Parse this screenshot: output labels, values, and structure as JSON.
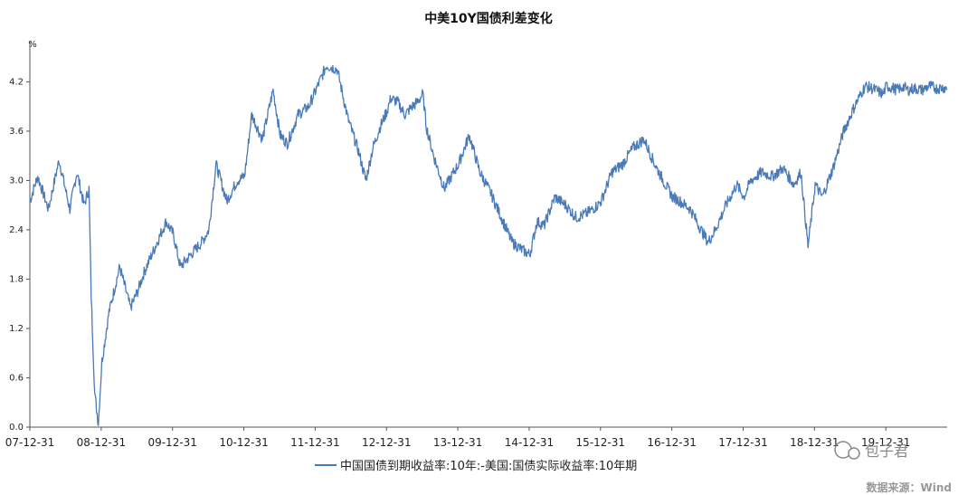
{
  "chart_data": {
    "type": "line",
    "title": "中美10Y国债利差变化",
    "ylabel": "%",
    "ylim": [
      0.0,
      4.7
    ],
    "yticks": [
      "0.0",
      "0.6",
      "1.2",
      "1.8",
      "2.4",
      "3.0",
      "3.6",
      "4.2"
    ],
    "xtick_labels": [
      "07-12-31",
      "08-12-31",
      "09-12-31",
      "10-12-31",
      "11-12-31",
      "12-12-31",
      "13-12-31",
      "14-12-31",
      "15-12-31",
      "16-12-31",
      "17-12-31",
      "18-12-31",
      "19-12-31"
    ],
    "grid": false,
    "legend_position": "bottom",
    "series": [
      {
        "name": "中国国债到期收益率:10年:-美国:国债实际收益率:10年期",
        "color": "#4a7ab8",
        "x": [
          2007.99,
          2008.1,
          2008.25,
          2008.4,
          2008.55,
          2008.65,
          2008.75,
          2008.82,
          2008.85,
          2008.9,
          2008.95,
          2009.0,
          2009.1,
          2009.25,
          2009.4,
          2009.5,
          2009.6,
          2009.75,
          2009.9,
          2010.0,
          2010.1,
          2010.25,
          2010.4,
          2010.5,
          2010.6,
          2010.75,
          2010.9,
          2011.0,
          2011.1,
          2011.25,
          2011.4,
          2011.5,
          2011.6,
          2011.75,
          2011.9,
          2012.0,
          2012.15,
          2012.3,
          2012.45,
          2012.6,
          2012.7,
          2012.8,
          2012.9,
          2013.0,
          2013.05,
          2013.15,
          2013.25,
          2013.35,
          2013.42,
          2013.5,
          2013.55,
          2013.65,
          2013.8,
          2014.0,
          2014.15,
          2014.3,
          2014.45,
          2014.6,
          2014.75,
          2014.9,
          2015.0,
          2015.1,
          2015.2,
          2015.35,
          2015.5,
          2015.65,
          2015.8,
          2015.95,
          2016.0,
          2016.15,
          2016.3,
          2016.45,
          2016.6,
          2016.75,
          2016.9,
          2017.0,
          2017.1,
          2017.25,
          2017.4,
          2017.5,
          2017.6,
          2017.75,
          2017.9,
          2018.0,
          2018.1,
          2018.25,
          2018.4,
          2018.55,
          2018.7,
          2018.8,
          2018.9,
          2019.0,
          2019.1,
          2019.25,
          2019.4,
          2019.55,
          2019.7,
          2019.85,
          2019.95,
          2020.0,
          2020.1,
          2020.15,
          2020.18,
          2020.2,
          2020.22,
          2020.3,
          2020.4,
          2020.5,
          2020.6,
          2020.7,
          2020.8,
          2020.85
        ],
        "values": [
          2.75,
          3.05,
          2.65,
          3.25,
          2.65,
          3.1,
          2.7,
          2.9,
          1.6,
          0.4,
          0.05,
          0.8,
          1.4,
          1.95,
          1.45,
          1.65,
          1.9,
          2.2,
          2.5,
          2.35,
          1.95,
          2.1,
          2.25,
          2.4,
          3.2,
          2.75,
          3.0,
          3.05,
          3.8,
          3.5,
          4.1,
          3.55,
          3.45,
          3.8,
          3.9,
          4.1,
          4.4,
          4.35,
          3.75,
          3.35,
          3.0,
          3.4,
          3.65,
          3.85,
          4.0,
          3.95,
          3.8,
          3.9,
          3.95,
          4.05,
          3.65,
          3.3,
          2.9,
          3.2,
          3.55,
          3.1,
          2.85,
          2.55,
          2.25,
          2.15,
          2.1,
          2.5,
          2.45,
          2.8,
          2.7,
          2.55,
          2.6,
          2.7,
          2.75,
          3.1,
          3.2,
          3.4,
          3.5,
          3.2,
          2.95,
          2.8,
          2.75,
          2.65,
          2.4,
          2.25,
          2.4,
          2.7,
          2.95,
          2.8,
          3.0,
          3.1,
          3.05,
          3.15,
          2.95,
          3.1,
          2.2,
          2.95,
          2.8,
          3.15,
          3.6,
          3.9,
          4.15,
          4.1,
          4.05,
          4.15,
          4.12,
          4.1,
          4.12,
          4.1,
          4.15,
          4.1,
          4.12,
          4.1,
          4.15,
          4.12,
          4.13,
          4.12
        ]
      }
    ]
  },
  "footer": {
    "source": "数据来源：Wind",
    "watermark": "包子君"
  }
}
